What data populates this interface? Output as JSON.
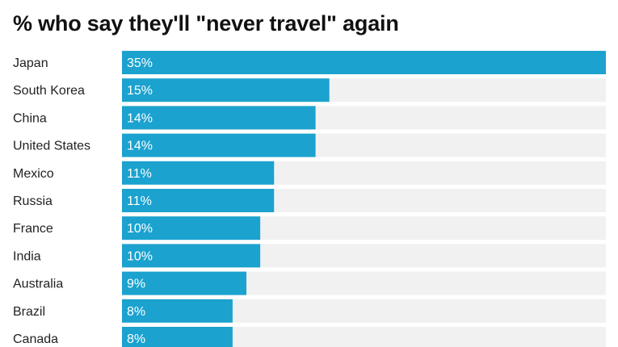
{
  "title": "% who say they'll \"never travel\" again",
  "colors": {
    "bar": "#1ba2cf",
    "track": "#f1f1f1"
  },
  "chart_data": {
    "type": "bar",
    "orientation": "horizontal",
    "title": "% who say they'll \"never travel\" again",
    "categories": [
      "Japan",
      "South Korea",
      "China",
      "United States",
      "Mexico",
      "Russia",
      "France",
      "India",
      "Australia",
      "Brazil",
      "Canada"
    ],
    "values": [
      35,
      15,
      14,
      14,
      11,
      11,
      10,
      10,
      9,
      8,
      8
    ],
    "value_labels": [
      "35%",
      "15%",
      "14%",
      "14%",
      "11%",
      "11%",
      "10%",
      "10%",
      "9%",
      "8%",
      "8%"
    ],
    "xlim": [
      0,
      35
    ],
    "xlabel": "",
    "ylabel": "",
    "grid": false,
    "legend": "none"
  }
}
